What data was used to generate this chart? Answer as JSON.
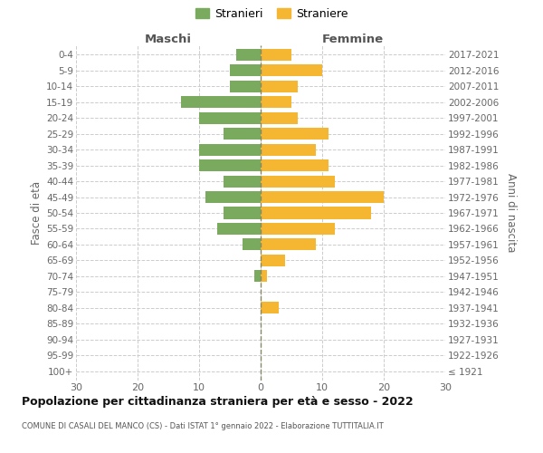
{
  "age_groups": [
    "100+",
    "95-99",
    "90-94",
    "85-89",
    "80-84",
    "75-79",
    "70-74",
    "65-69",
    "60-64",
    "55-59",
    "50-54",
    "45-49",
    "40-44",
    "35-39",
    "30-34",
    "25-29",
    "20-24",
    "15-19",
    "10-14",
    "5-9",
    "0-4"
  ],
  "birth_years": [
    "≤ 1921",
    "1922-1926",
    "1927-1931",
    "1932-1936",
    "1937-1941",
    "1942-1946",
    "1947-1951",
    "1952-1956",
    "1957-1961",
    "1962-1966",
    "1967-1971",
    "1972-1976",
    "1977-1981",
    "1982-1986",
    "1987-1991",
    "1992-1996",
    "1997-2001",
    "2002-2006",
    "2007-2011",
    "2012-2016",
    "2017-2021"
  ],
  "maschi": [
    0,
    0,
    0,
    0,
    0,
    0,
    1,
    0,
    3,
    7,
    6,
    9,
    6,
    10,
    10,
    6,
    10,
    13,
    5,
    5,
    4
  ],
  "femmine": [
    0,
    0,
    0,
    0,
    3,
    0,
    1,
    4,
    9,
    12,
    18,
    20,
    12,
    11,
    9,
    11,
    6,
    5,
    6,
    10,
    5
  ],
  "color_maschi": "#7aaa5e",
  "color_femmine": "#f5b731",
  "title": "Popolazione per cittadinanza straniera per età e sesso - 2022",
  "subtitle": "COMUNE DI CASALI DEL MANCO (CS) - Dati ISTAT 1° gennaio 2022 - Elaborazione TUTTITALIA.IT",
  "xlabel_left": "Maschi",
  "xlabel_right": "Femmine",
  "ylabel_left": "Fasce di età",
  "ylabel_right": "Anni di nascita",
  "legend_maschi": "Stranieri",
  "legend_femmine": "Straniere",
  "xlim": 30,
  "background_color": "#ffffff",
  "grid_color": "#cccccc",
  "dashed_line_color": "#888866"
}
